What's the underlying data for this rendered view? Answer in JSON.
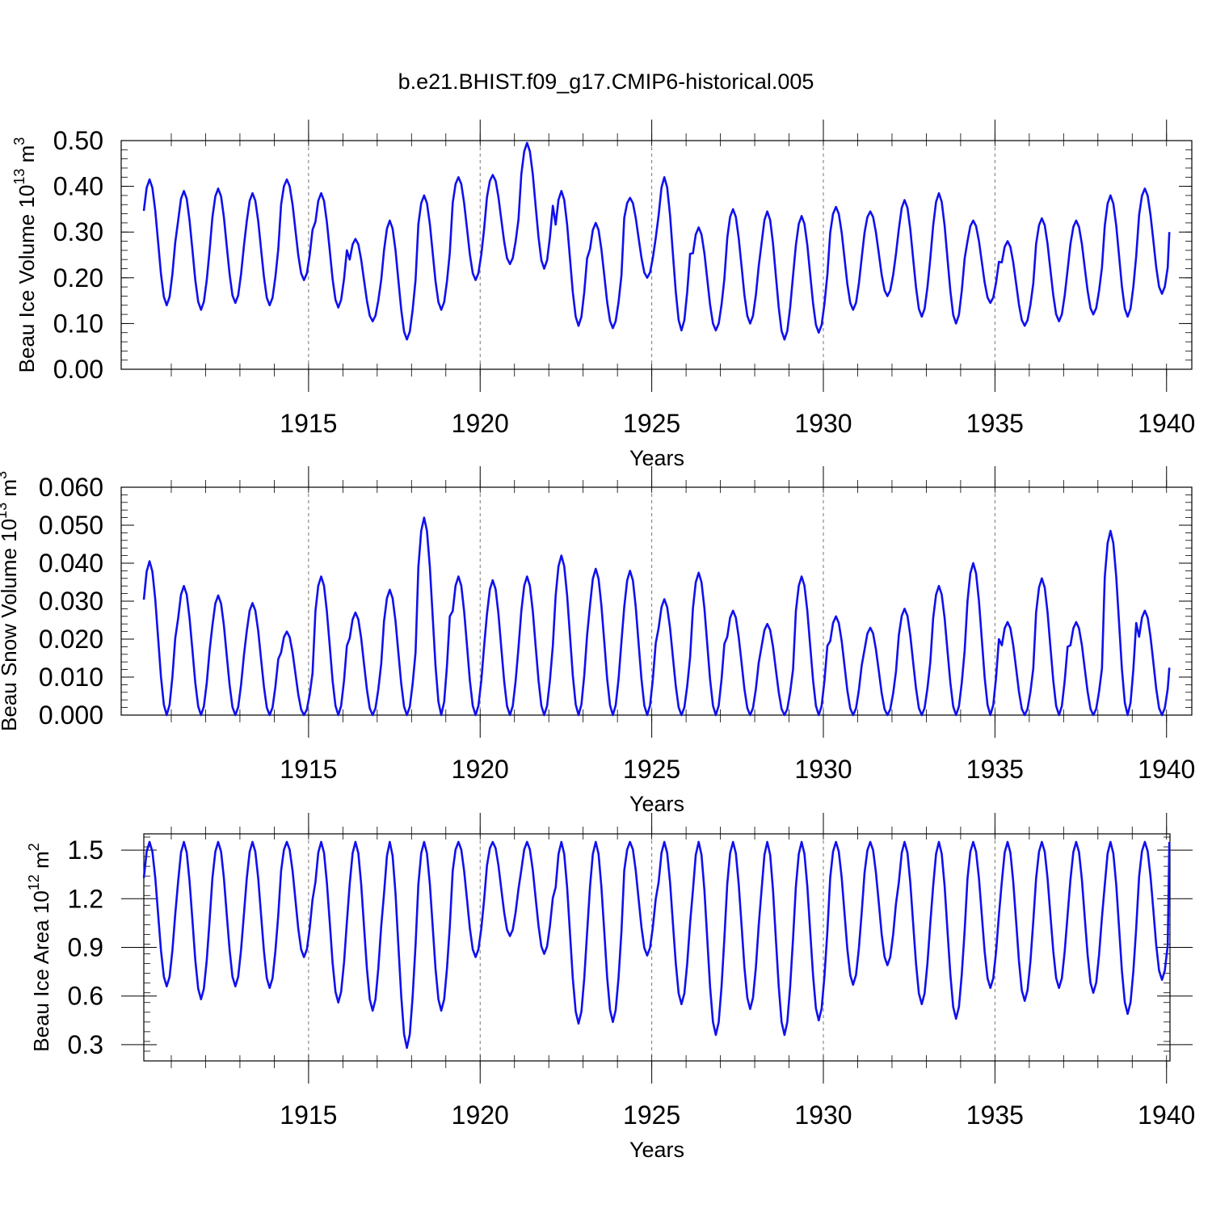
{
  "figure": {
    "title": "b.e21.BHIST.f09_g17.CMIP6-historical.005",
    "line_color": "#1010ee"
  },
  "chart_data": [
    {
      "type": "line",
      "xlabel": "Years",
      "ylabel": "Beau Ice Volume 10",
      "ylabel_exp": "13",
      "ylabel_unit": " m",
      "ylabel_unit_exp": "3",
      "xlim": [
        1910.2,
        1940.1
      ],
      "ylim": [
        0.0,
        0.5
      ],
      "xticks": [
        1915,
        1920,
        1925,
        1930,
        1935,
        1940
      ],
      "xtick_labels": [
        "1915",
        "1920",
        "1925",
        "1930",
        "1935",
        "1940"
      ],
      "yticks": [
        0.0,
        0.1,
        0.2,
        0.3,
        0.4,
        0.5
      ],
      "ytick_labels": [
        "0.00",
        "0.10",
        "0.20",
        "0.30",
        "0.40",
        "0.50"
      ],
      "grid_x": true,
      "series": [
        {
          "year_start": 1910.2,
          "points_per_year": 12,
          "peaks": [
            0.415,
            0.39,
            0.395,
            0.385,
            0.415,
            0.385,
            0.285,
            0.325,
            0.38,
            0.42,
            0.425,
            0.495,
            0.39,
            0.32,
            0.375,
            0.42,
            0.31,
            0.35,
            0.345,
            0.335,
            0.355,
            0.345,
            0.37,
            0.385,
            0.325,
            0.28,
            0.33,
            0.325,
            0.38,
            0.395
          ],
          "troughs": [
            0.14,
            0.13,
            0.145,
            0.14,
            0.195,
            0.135,
            0.105,
            0.065,
            0.13,
            0.195,
            0.23,
            0.22,
            0.095,
            0.09,
            0.2,
            0.085,
            0.085,
            0.1,
            0.065,
            0.08,
            0.13,
            0.16,
            0.115,
            0.1,
            0.145,
            0.095,
            0.105,
            0.12,
            0.115,
            0.165
          ],
          "end_value": 0.3
        }
      ]
    },
    {
      "type": "line",
      "xlabel": "Years",
      "ylabel": "Beau Snow Volume 10",
      "ylabel_exp": "13",
      "ylabel_unit": " m",
      "ylabel_unit_exp": "3",
      "xlim": [
        1910.2,
        1940.1
      ],
      "ylim": [
        0.0,
        0.06
      ],
      "xticks": [
        1915,
        1920,
        1925,
        1930,
        1935,
        1940
      ],
      "xtick_labels": [
        "1915",
        "1920",
        "1925",
        "1930",
        "1935",
        "1940"
      ],
      "yticks": [
        0.0,
        0.01,
        0.02,
        0.03,
        0.04,
        0.05,
        0.06
      ],
      "ytick_labels": [
        "0.000",
        "0.010",
        "0.020",
        "0.030",
        "0.040",
        "0.050",
        "0.060"
      ],
      "grid_x": true,
      "series": [
        {
          "year_start": 1910.2,
          "points_per_year": 12,
          "peaks": [
            0.0405,
            0.034,
            0.0315,
            0.0295,
            0.022,
            0.0365,
            0.027,
            0.033,
            0.052,
            0.0365,
            0.0355,
            0.0365,
            0.042,
            0.0385,
            0.038,
            0.0305,
            0.0375,
            0.0275,
            0.024,
            0.0365,
            0.026,
            0.023,
            0.028,
            0.034,
            0.04,
            0.0245,
            0.036,
            0.0245,
            0.0485,
            0.0275
          ],
          "troughs": [
            0.0,
            0.0,
            0.0,
            0.0,
            0.0,
            0.0,
            0.0,
            0.0,
            0.0,
            0.0,
            0.0,
            0.0,
            0.0,
            0.0,
            0.0,
            0.0,
            0.0,
            0.0,
            0.0,
            0.0,
            0.0,
            0.0,
            0.0,
            0.0,
            0.0,
            0.0,
            0.0,
            0.0,
            0.0,
            0.0
          ],
          "end_value": 0.0125
        }
      ]
    },
    {
      "type": "line",
      "xlabel": "Years",
      "ylabel": "Beau Ice Area 10",
      "ylabel_exp": "12",
      "ylabel_unit": " m",
      "ylabel_unit_exp": "2",
      "xlim": [
        1910.2,
        1940.1
      ],
      "ylim": [
        0.2,
        1.6
      ],
      "xticks": [
        1915,
        1920,
        1925,
        1930,
        1935,
        1940
      ],
      "xtick_labels": [
        "1915",
        "1920",
        "1925",
        "1930",
        "1935",
        "1940"
      ],
      "yticks": [
        0.3,
        0.6,
        0.9,
        1.2,
        1.5
      ],
      "ytick_labels": [
        "0.3",
        "0.6",
        "0.9",
        "1.2",
        "1.5"
      ],
      "grid_x": true,
      "series": [
        {
          "year_start": 1910.2,
          "points_per_year": 12,
          "peaks": [
            1.55,
            1.55,
            1.55,
            1.55,
            1.55,
            1.55,
            1.55,
            1.55,
            1.55,
            1.55,
            1.55,
            1.55,
            1.55,
            1.55,
            1.55,
            1.55,
            1.55,
            1.55,
            1.55,
            1.55,
            1.55,
            1.55,
            1.55,
            1.55,
            1.55,
            1.55,
            1.55,
            1.55,
            1.55,
            1.55
          ],
          "troughs": [
            0.66,
            0.58,
            0.66,
            0.65,
            0.84,
            0.56,
            0.51,
            0.28,
            0.51,
            0.84,
            0.97,
            0.86,
            0.43,
            0.44,
            0.85,
            0.55,
            0.36,
            0.52,
            0.36,
            0.45,
            0.67,
            0.79,
            0.55,
            0.46,
            0.65,
            0.57,
            0.65,
            0.62,
            0.49,
            0.7
          ],
          "end_value": 1.55
        }
      ]
    }
  ]
}
